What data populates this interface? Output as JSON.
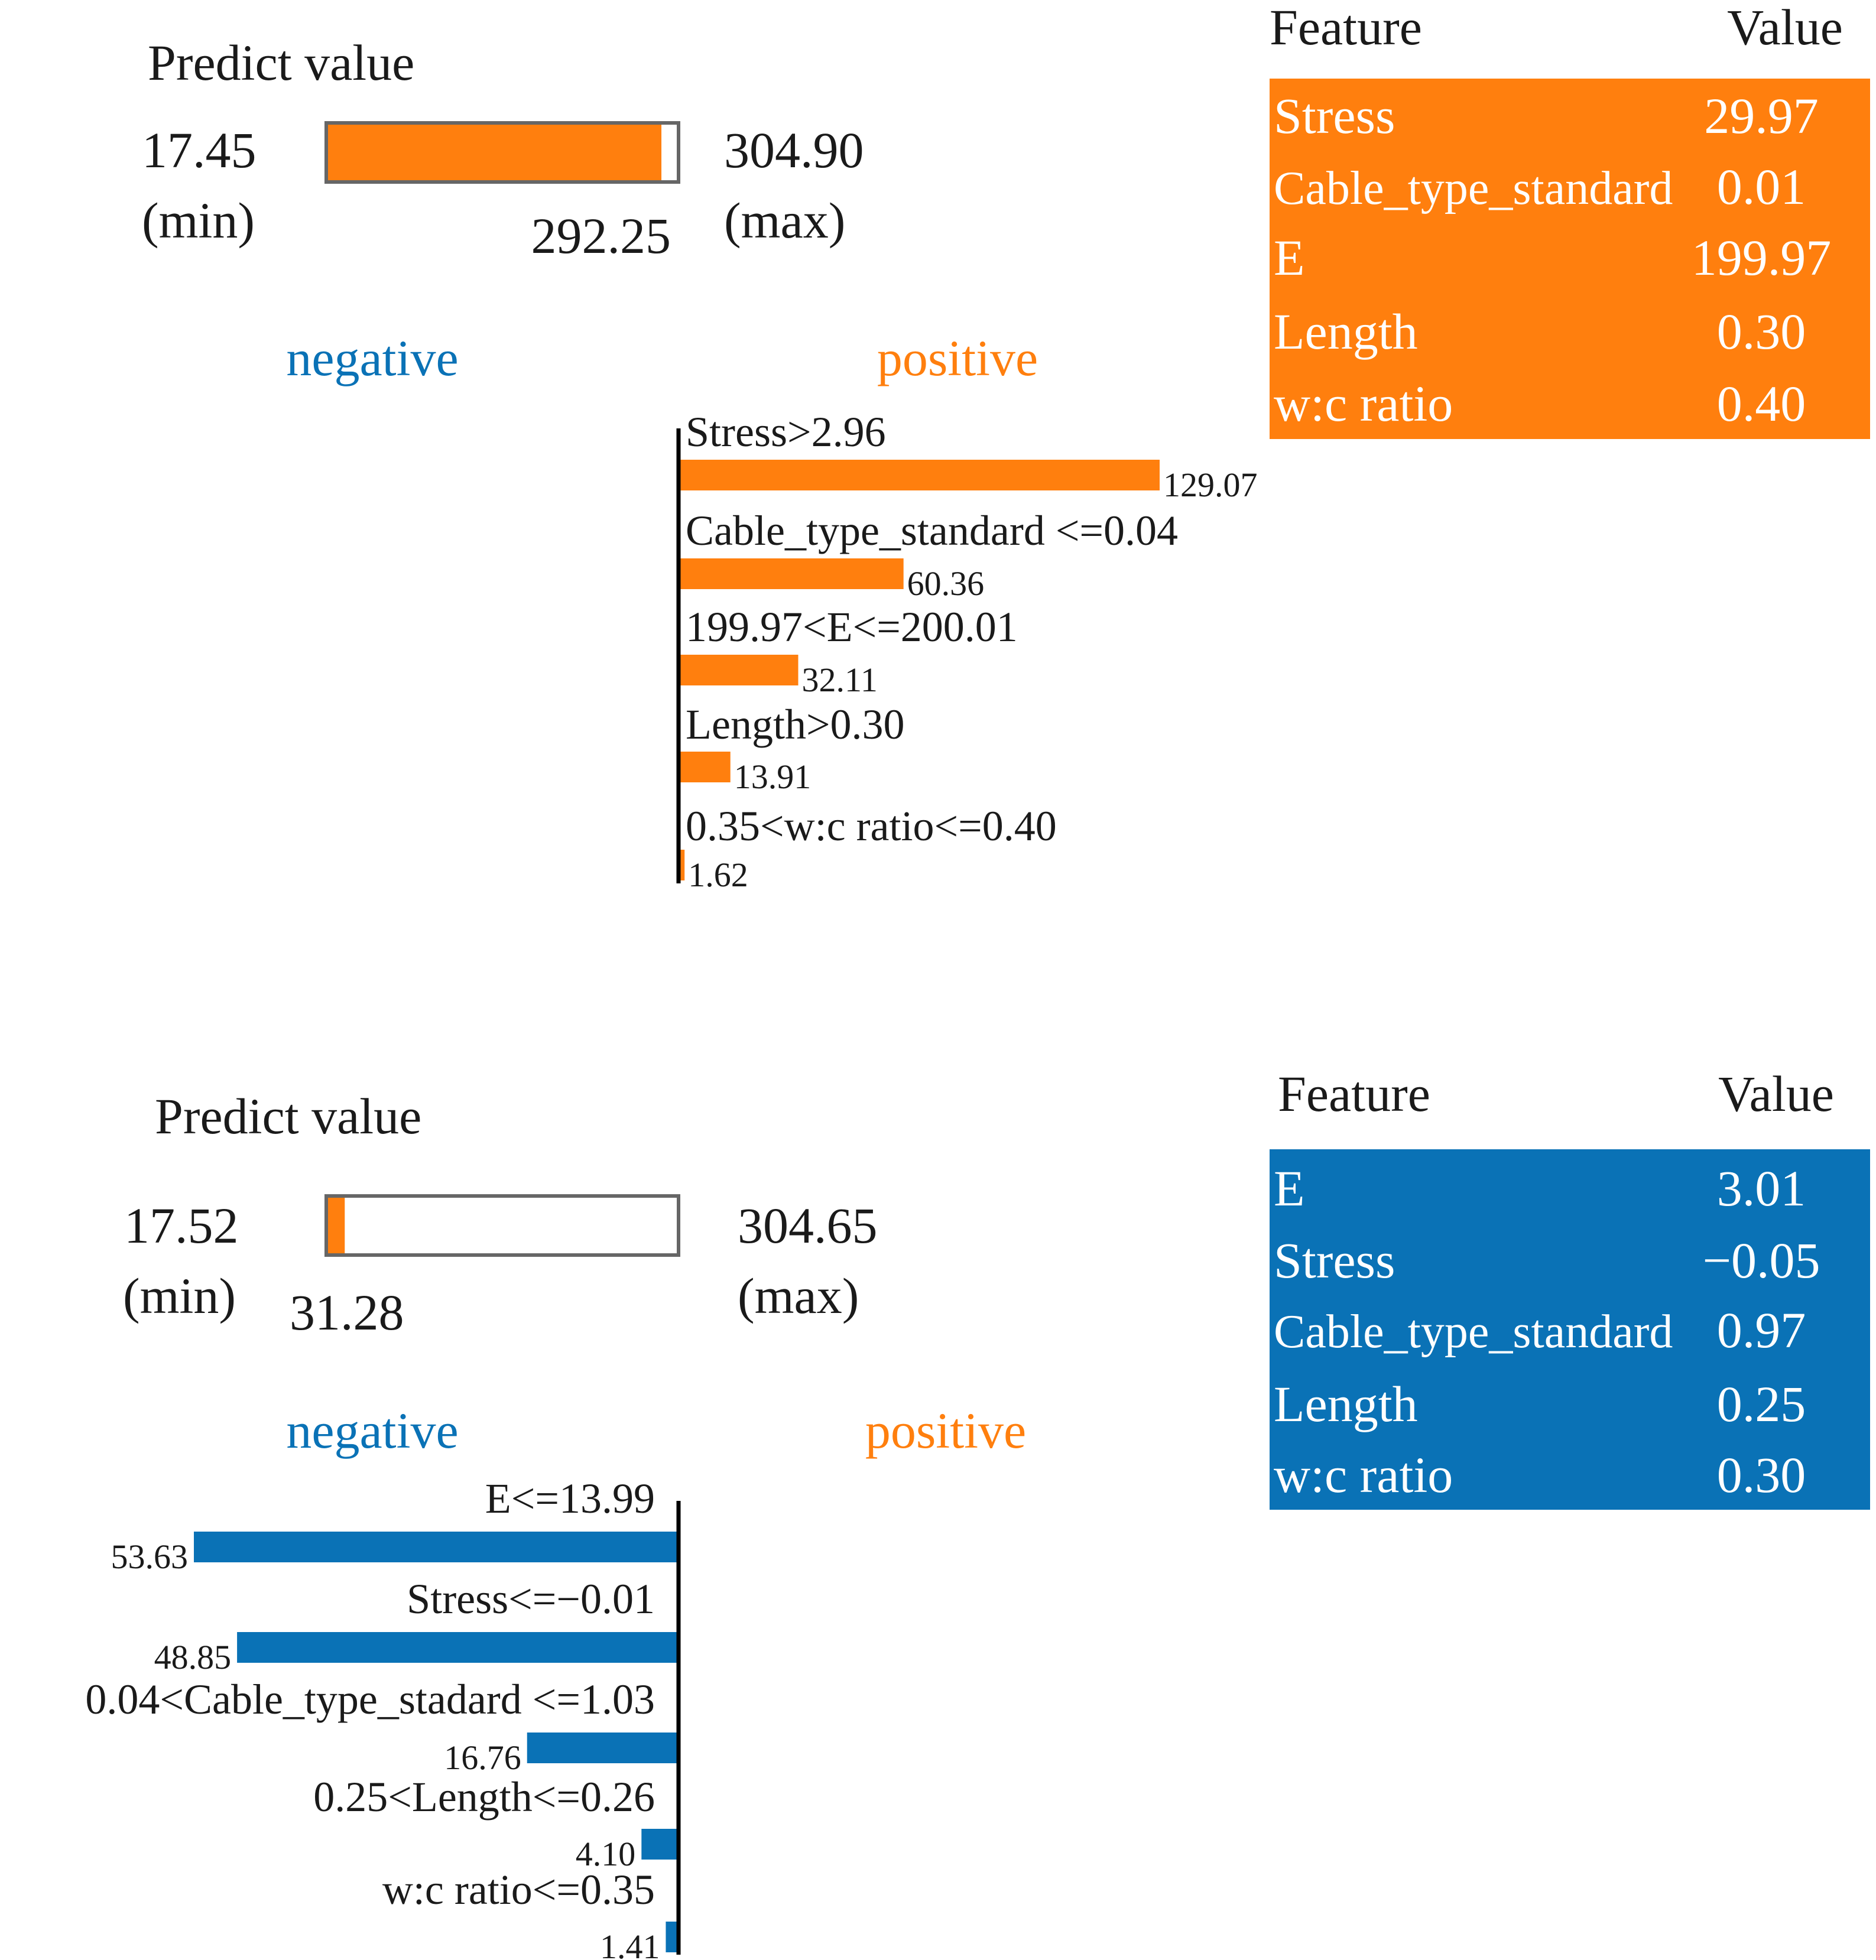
{
  "colors": {
    "positive": "#ff7f0e",
    "negative": "#0a72b6",
    "axis": "#000000",
    "text": "#1a1a1a",
    "bar_border": "#666666"
  },
  "chart_data": [
    {
      "type": "bar",
      "orientation": "horizontal",
      "title": "Predict value",
      "predict": {
        "min": 17.45,
        "max": 304.9,
        "value": 292.25,
        "min_text": "17.45",
        "max_text": "304.90",
        "value_text": "292.25",
        "min_label": "(min)",
        "max_label": "(max)"
      },
      "legend": {
        "negative": "negative",
        "positive": "positive"
      },
      "direction": "positive",
      "categories": [
        "Stress>2.96",
        "Cable_type_standard <=0.04",
        "199.97<E<=200.01",
        "Length>0.30",
        "0.35<w:c ratio<=0.40"
      ],
      "values": [
        129.07,
        60.36,
        32.11,
        13.91,
        1.62
      ],
      "value_labels": [
        "129.07",
        "60.36",
        "32.11",
        "13.91",
        "1.62"
      ],
      "xlim": [
        0,
        150
      ],
      "table": {
        "headers": [
          "Feature",
          "Value"
        ],
        "color": "positive",
        "rows": [
          {
            "feature": "Stress",
            "value": "29.97"
          },
          {
            "feature": "Cable_type_standard",
            "value": "0.01"
          },
          {
            "feature": "E",
            "value": "199.97"
          },
          {
            "feature": "Length",
            "value": "0.30"
          },
          {
            "feature": "w:c ratio",
            "value": "0.40"
          }
        ]
      }
    },
    {
      "type": "bar",
      "orientation": "horizontal",
      "title": "Predict value",
      "predict": {
        "min": 17.52,
        "max": 304.65,
        "value": 31.28,
        "min_text": "17.52",
        "max_text": "304.65",
        "value_text": "31.28",
        "min_label": "(min)",
        "max_label": "(max)"
      },
      "legend": {
        "negative": "negative",
        "positive": "positive"
      },
      "direction": "negative",
      "categories": [
        "E<=13.99",
        "Stress<=−0.01",
        "0.04<Cable_type_stadard <=1.03",
        "0.25<Length<=0.26",
        "w:c ratio<=0.35"
      ],
      "values": [
        53.63,
        48.85,
        16.76,
        4.1,
        1.41
      ],
      "value_labels": [
        "53.63",
        "48.85",
        "16.76",
        "4.10",
        "1.41"
      ],
      "xlim": [
        0,
        60
      ],
      "table": {
        "headers": [
          "Feature",
          "Value"
        ],
        "color": "negative",
        "rows": [
          {
            "feature": "E",
            "value": "3.01"
          },
          {
            "feature": "Stress",
            "value": "−0.05"
          },
          {
            "feature": "Cable_type_standard",
            "value": "0.97"
          },
          {
            "feature": "Length",
            "value": "0.25"
          },
          {
            "feature": "w:c ratio",
            "value": "0.30"
          }
        ]
      }
    }
  ]
}
